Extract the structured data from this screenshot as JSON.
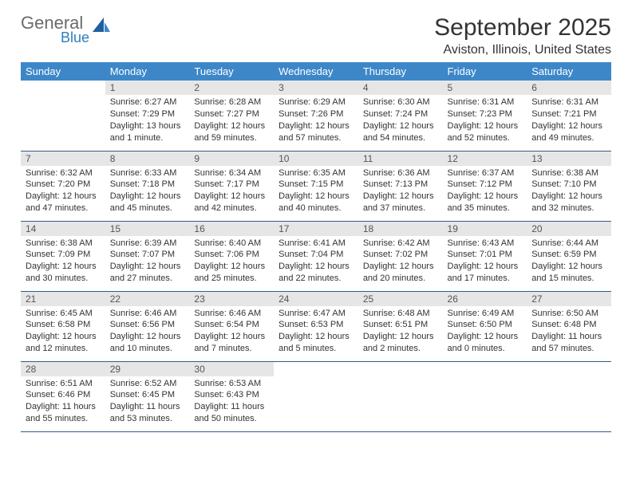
{
  "brand": {
    "general": "General",
    "blue": "Blue"
  },
  "title": "September 2025",
  "location": "Aviston, Illinois, United States",
  "colors": {
    "header_bg": "#3d87c9",
    "header_fg": "#ffffff",
    "daynum_bg": "#e6e6e6",
    "row_border": "#2f5f8f",
    "logo_gray": "#6b6b6b",
    "logo_blue": "#2f7fbf"
  },
  "weekdays": [
    "Sunday",
    "Monday",
    "Tuesday",
    "Wednesday",
    "Thursday",
    "Friday",
    "Saturday"
  ],
  "weeks": [
    [
      {
        "n": "",
        "sr": "",
        "ss": "",
        "dl": ""
      },
      {
        "n": "1",
        "sr": "Sunrise: 6:27 AM",
        "ss": "Sunset: 7:29 PM",
        "dl": "Daylight: 13 hours and 1 minute."
      },
      {
        "n": "2",
        "sr": "Sunrise: 6:28 AM",
        "ss": "Sunset: 7:27 PM",
        "dl": "Daylight: 12 hours and 59 minutes."
      },
      {
        "n": "3",
        "sr": "Sunrise: 6:29 AM",
        "ss": "Sunset: 7:26 PM",
        "dl": "Daylight: 12 hours and 57 minutes."
      },
      {
        "n": "4",
        "sr": "Sunrise: 6:30 AM",
        "ss": "Sunset: 7:24 PM",
        "dl": "Daylight: 12 hours and 54 minutes."
      },
      {
        "n": "5",
        "sr": "Sunrise: 6:31 AM",
        "ss": "Sunset: 7:23 PM",
        "dl": "Daylight: 12 hours and 52 minutes."
      },
      {
        "n": "6",
        "sr": "Sunrise: 6:31 AM",
        "ss": "Sunset: 7:21 PM",
        "dl": "Daylight: 12 hours and 49 minutes."
      }
    ],
    [
      {
        "n": "7",
        "sr": "Sunrise: 6:32 AM",
        "ss": "Sunset: 7:20 PM",
        "dl": "Daylight: 12 hours and 47 minutes."
      },
      {
        "n": "8",
        "sr": "Sunrise: 6:33 AM",
        "ss": "Sunset: 7:18 PM",
        "dl": "Daylight: 12 hours and 45 minutes."
      },
      {
        "n": "9",
        "sr": "Sunrise: 6:34 AM",
        "ss": "Sunset: 7:17 PM",
        "dl": "Daylight: 12 hours and 42 minutes."
      },
      {
        "n": "10",
        "sr": "Sunrise: 6:35 AM",
        "ss": "Sunset: 7:15 PM",
        "dl": "Daylight: 12 hours and 40 minutes."
      },
      {
        "n": "11",
        "sr": "Sunrise: 6:36 AM",
        "ss": "Sunset: 7:13 PM",
        "dl": "Daylight: 12 hours and 37 minutes."
      },
      {
        "n": "12",
        "sr": "Sunrise: 6:37 AM",
        "ss": "Sunset: 7:12 PM",
        "dl": "Daylight: 12 hours and 35 minutes."
      },
      {
        "n": "13",
        "sr": "Sunrise: 6:38 AM",
        "ss": "Sunset: 7:10 PM",
        "dl": "Daylight: 12 hours and 32 minutes."
      }
    ],
    [
      {
        "n": "14",
        "sr": "Sunrise: 6:38 AM",
        "ss": "Sunset: 7:09 PM",
        "dl": "Daylight: 12 hours and 30 minutes."
      },
      {
        "n": "15",
        "sr": "Sunrise: 6:39 AM",
        "ss": "Sunset: 7:07 PM",
        "dl": "Daylight: 12 hours and 27 minutes."
      },
      {
        "n": "16",
        "sr": "Sunrise: 6:40 AM",
        "ss": "Sunset: 7:06 PM",
        "dl": "Daylight: 12 hours and 25 minutes."
      },
      {
        "n": "17",
        "sr": "Sunrise: 6:41 AM",
        "ss": "Sunset: 7:04 PM",
        "dl": "Daylight: 12 hours and 22 minutes."
      },
      {
        "n": "18",
        "sr": "Sunrise: 6:42 AM",
        "ss": "Sunset: 7:02 PM",
        "dl": "Daylight: 12 hours and 20 minutes."
      },
      {
        "n": "19",
        "sr": "Sunrise: 6:43 AM",
        "ss": "Sunset: 7:01 PM",
        "dl": "Daylight: 12 hours and 17 minutes."
      },
      {
        "n": "20",
        "sr": "Sunrise: 6:44 AM",
        "ss": "Sunset: 6:59 PM",
        "dl": "Daylight: 12 hours and 15 minutes."
      }
    ],
    [
      {
        "n": "21",
        "sr": "Sunrise: 6:45 AM",
        "ss": "Sunset: 6:58 PM",
        "dl": "Daylight: 12 hours and 12 minutes."
      },
      {
        "n": "22",
        "sr": "Sunrise: 6:46 AM",
        "ss": "Sunset: 6:56 PM",
        "dl": "Daylight: 12 hours and 10 minutes."
      },
      {
        "n": "23",
        "sr": "Sunrise: 6:46 AM",
        "ss": "Sunset: 6:54 PM",
        "dl": "Daylight: 12 hours and 7 minutes."
      },
      {
        "n": "24",
        "sr": "Sunrise: 6:47 AM",
        "ss": "Sunset: 6:53 PM",
        "dl": "Daylight: 12 hours and 5 minutes."
      },
      {
        "n": "25",
        "sr": "Sunrise: 6:48 AM",
        "ss": "Sunset: 6:51 PM",
        "dl": "Daylight: 12 hours and 2 minutes."
      },
      {
        "n": "26",
        "sr": "Sunrise: 6:49 AM",
        "ss": "Sunset: 6:50 PM",
        "dl": "Daylight: 12 hours and 0 minutes."
      },
      {
        "n": "27",
        "sr": "Sunrise: 6:50 AM",
        "ss": "Sunset: 6:48 PM",
        "dl": "Daylight: 11 hours and 57 minutes."
      }
    ],
    [
      {
        "n": "28",
        "sr": "Sunrise: 6:51 AM",
        "ss": "Sunset: 6:46 PM",
        "dl": "Daylight: 11 hours and 55 minutes."
      },
      {
        "n": "29",
        "sr": "Sunrise: 6:52 AM",
        "ss": "Sunset: 6:45 PM",
        "dl": "Daylight: 11 hours and 53 minutes."
      },
      {
        "n": "30",
        "sr": "Sunrise: 6:53 AM",
        "ss": "Sunset: 6:43 PM",
        "dl": "Daylight: 11 hours and 50 minutes."
      },
      {
        "n": "",
        "sr": "",
        "ss": "",
        "dl": ""
      },
      {
        "n": "",
        "sr": "",
        "ss": "",
        "dl": ""
      },
      {
        "n": "",
        "sr": "",
        "ss": "",
        "dl": ""
      },
      {
        "n": "",
        "sr": "",
        "ss": "",
        "dl": ""
      }
    ]
  ]
}
